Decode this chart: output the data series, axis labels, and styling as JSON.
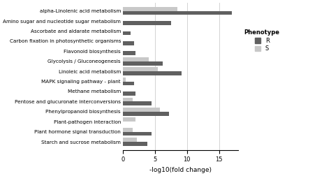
{
  "categories": [
    "Starch and sucrose metabolism",
    "Plant hormone signal transduction",
    "Plant-pathogen interaction",
    "Phenylpropanoid biosynthesis",
    "Pentose and glucuronate interconversions",
    "Methane metabolism",
    "MAPK signaling pathway - plant",
    "Linoleic acid metabolism",
    "Glycolysis / Gluconeogenesis",
    "Flavonoid biosynthesis",
    "Carbon fixation in photosynthetic organisms",
    "Ascorbate and aldarate metabolism",
    "Amino sugar and nucleotide sugar metabolism",
    "alpha-Linolenic acid metabolism"
  ],
  "R_values": [
    3.8,
    4.5,
    0.0,
    7.2,
    4.5,
    2.0,
    1.8,
    9.2,
    6.2,
    2.0,
    1.8,
    1.2,
    7.5,
    17.0
  ],
  "S_values": [
    2.2,
    1.5,
    2.0,
    5.8,
    1.5,
    0.0,
    0.5,
    5.5,
    4.0,
    0.0,
    0.0,
    0.0,
    0.0,
    8.5
  ],
  "color_R": "#606060",
  "color_S": "#c8c8c8",
  "xlabel": "-log10(fold change)",
  "legend_title": "Phenotype",
  "legend_labels": [
    "R",
    "S"
  ],
  "xlim": [
    0,
    18
  ],
  "xticks": [
    0,
    5,
    10,
    15
  ],
  "vlines": [
    5,
    10,
    15
  ],
  "background_color": "#ffffff",
  "bar_height": 0.4,
  "figsize": [
    4.74,
    2.52
  ],
  "dpi": 100
}
